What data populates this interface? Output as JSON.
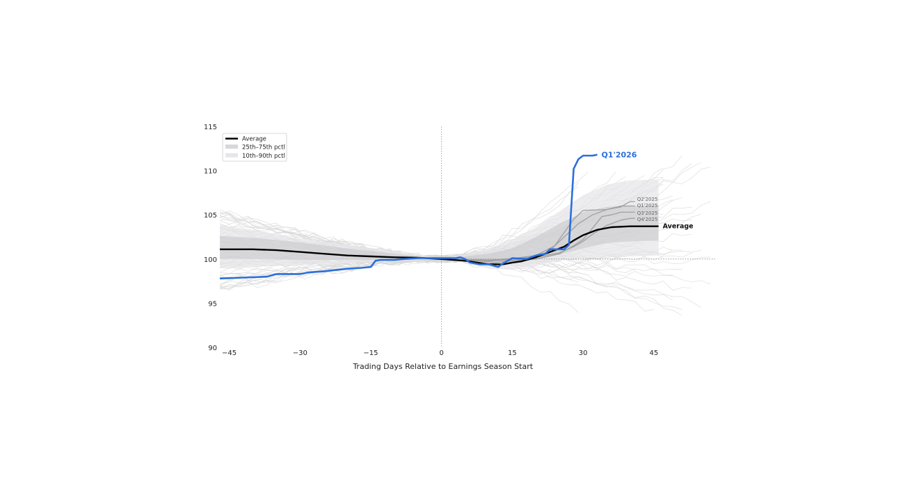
{
  "colors": {
    "average": "#000000",
    "current": "#2a6fdb",
    "recent": "#a0a0a0",
    "history": "#d6d6d6",
    "band_iqr": "#c8c8cc",
    "band_outer": "#e6e6ea"
  },
  "chart_data": {
    "type": "line",
    "title": "",
    "xlabel": "Trading Days Relative to Earnings Season Start",
    "ylabel": "",
    "xlim": [
      -47,
      58
    ],
    "ylim": [
      90,
      115
    ],
    "x_ticks": [
      -45,
      -30,
      -15,
      0,
      15,
      30,
      45
    ],
    "x_tick_labels": [
      "−45",
      "−30",
      "−15",
      "0",
      "15",
      "30",
      "45"
    ],
    "y_ticks": [
      90,
      95,
      100,
      105,
      110,
      115
    ],
    "y_tick_labels": [
      "90",
      "95",
      "100",
      "105",
      "110",
      "115"
    ],
    "reference_lines": {
      "x": 0,
      "y": 100
    },
    "legend": {
      "position": "top-left",
      "entries": [
        "Average",
        "25th–75th pctl",
        "10th–90th pctl"
      ]
    },
    "bands": {
      "x": [
        -47,
        -40,
        -30,
        -20,
        -10,
        -5,
        0,
        5,
        10,
        15,
        20,
        25,
        30,
        35,
        40,
        46
      ],
      "p10": [
        99.0,
        99.1,
        99.3,
        99.5,
        99.7,
        99.8,
        100,
        99.6,
        98.9,
        98.8,
        99.2,
        99.8,
        100.1,
        100.2,
        100.3,
        100.4
      ],
      "p90": [
        103.8,
        103.3,
        102.3,
        101.6,
        100.9,
        100.5,
        100,
        100.6,
        101.2,
        102.2,
        103.6,
        105.4,
        107.2,
        108.4,
        108.9,
        109.0
      ],
      "p25": [
        100.0,
        100.0,
        99.9,
        99.9,
        99.9,
        99.9,
        100,
        99.9,
        99.6,
        99.6,
        99.9,
        100.5,
        101.2,
        101.8,
        102.0,
        102.1
      ],
      "p75": [
        102.6,
        102.4,
        101.9,
        101.2,
        100.6,
        100.3,
        100,
        100.3,
        100.6,
        101.2,
        102.5,
        104.0,
        105.3,
        105.9,
        106.0,
        106.1
      ]
    },
    "series": [
      {
        "name": "Average",
        "role": "average",
        "x": [
          -47,
          -40,
          -35,
          -30,
          -25,
          -20,
          -15,
          -10,
          -5,
          0,
          5,
          10,
          13,
          15,
          17,
          20,
          23,
          26,
          28,
          30,
          33,
          36,
          40,
          43,
          46
        ],
        "y": [
          101.1,
          101.1,
          101.0,
          100.8,
          100.6,
          100.4,
          100.3,
          100.2,
          100.15,
          100,
          99.8,
          99.4,
          99.4,
          99.6,
          99.75,
          100.2,
          100.8,
          101.4,
          102.1,
          102.7,
          103.3,
          103.6,
          103.7,
          103.7,
          103.7
        ]
      },
      {
        "name": "Q1'2026",
        "role": "current",
        "x": [
          -47,
          -42,
          -37,
          -35,
          -33,
          -30,
          -28,
          -25,
          -20,
          -17,
          -15,
          -14,
          -13,
          -10,
          -8,
          -5,
          0,
          3,
          4,
          5,
          6,
          8,
          10,
          12,
          13,
          15,
          18,
          20,
          22,
          23,
          25,
          26,
          27,
          28,
          29,
          30,
          32,
          33
        ],
        "y": [
          97.8,
          97.9,
          98.0,
          98.3,
          98.3,
          98.3,
          98.5,
          98.6,
          98.9,
          99.0,
          99.1,
          99.8,
          99.9,
          99.9,
          100.0,
          100.1,
          100.1,
          100.1,
          100.2,
          100.0,
          99.6,
          99.4,
          99.4,
          99.1,
          99.5,
          100.1,
          100.0,
          100.4,
          100.6,
          101.1,
          101.1,
          101.1,
          101.6,
          110.2,
          111.3,
          111.7,
          111.7,
          111.8
        ]
      },
      {
        "name": "Q2'2025",
        "role": "recent",
        "x": [
          0,
          10,
          20,
          24,
          26,
          28,
          30,
          35,
          38,
          40,
          41
        ],
        "y": [
          100,
          99.7,
          100.4,
          101.5,
          103.0,
          104.5,
          105.5,
          105.6,
          105.9,
          106.5,
          106.5
        ]
      },
      {
        "name": "Q1'2025",
        "role": "recent",
        "x": [
          0,
          10,
          20,
          23,
          26,
          29,
          32,
          35,
          38,
          40,
          41
        ],
        "y": [
          100,
          99.5,
          100.1,
          101.0,
          102.5,
          104.0,
          105.0,
          105.6,
          106.0,
          106.0,
          106.0
        ]
      },
      {
        "name": "Q3'2025",
        "role": "recent",
        "x": [
          0,
          10,
          20,
          25,
          28,
          30,
          32,
          34,
          36,
          38,
          40,
          41
        ],
        "y": [
          100,
          99.8,
          100.0,
          100.6,
          101.5,
          102.2,
          103.5,
          104.8,
          105.0,
          105.3,
          105.3,
          105.3
        ]
      },
      {
        "name": "Q4'2025",
        "role": "recent",
        "x": [
          0,
          10,
          20,
          25,
          28,
          30,
          32,
          35,
          38,
          40,
          41
        ],
        "y": [
          100,
          99.9,
          100.2,
          100.7,
          101.4,
          102.0,
          102.8,
          103.8,
          104.4,
          104.6,
          104.6
        ]
      }
    ],
    "series_labels": {
      "current": "Q1'2026",
      "average": "Average",
      "recent": [
        "Q2'2025",
        "Q1'2025",
        "Q3'2025",
        "Q4'2025"
      ]
    }
  }
}
